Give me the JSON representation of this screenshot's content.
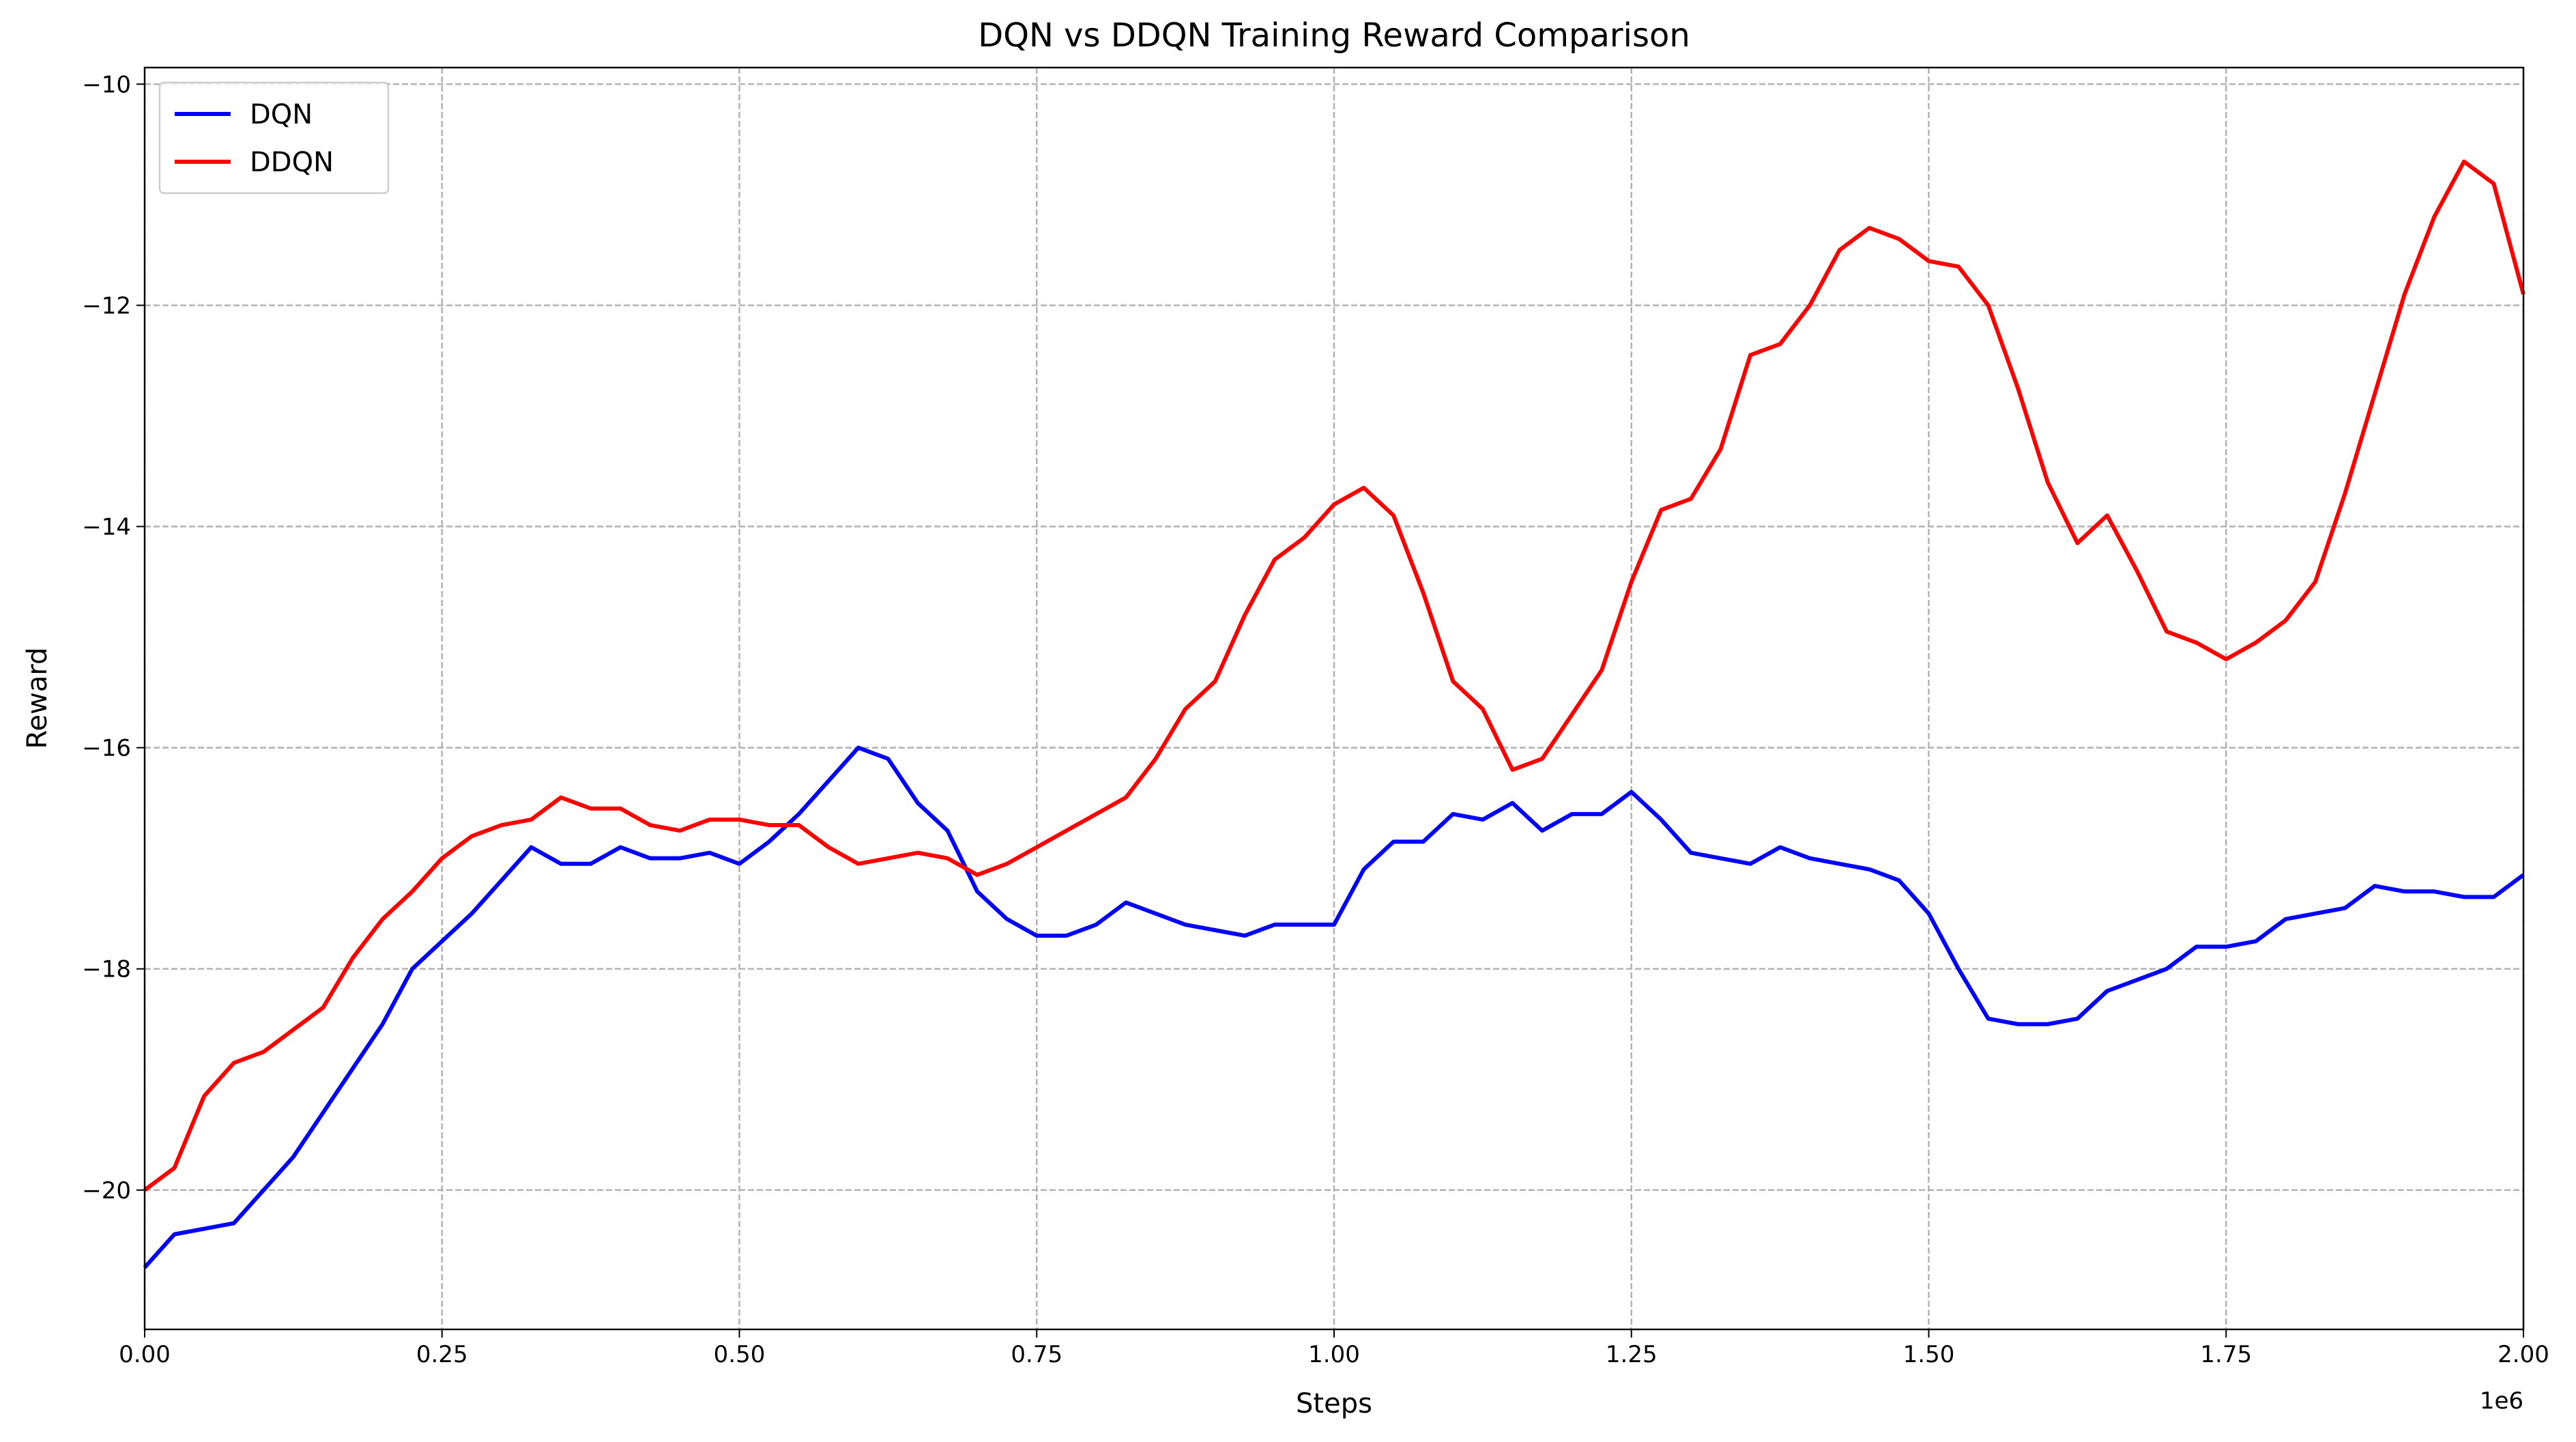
{
  "chart_data": {
    "type": "line",
    "title": "DQN vs DDQN Training Reward Comparison",
    "x_label": "Steps",
    "y_label": "Reward",
    "x_offset_label": "1e6",
    "x": [
      0,
      25000,
      50000,
      75000,
      100000,
      125000,
      150000,
      175000,
      200000,
      225000,
      250000,
      275000,
      300000,
      325000,
      350000,
      375000,
      400000,
      425000,
      450000,
      475000,
      500000,
      525000,
      550000,
      575000,
      600000,
      625000,
      650000,
      675000,
      700000,
      725000,
      750000,
      775000,
      800000,
      825000,
      850000,
      875000,
      900000,
      925000,
      950000,
      975000,
      1000000,
      1025000,
      1050000,
      1075000,
      1100000,
      1125000,
      1150000,
      1175000,
      1200000,
      1225000,
      1250000,
      1275000,
      1300000,
      1325000,
      1350000,
      1375000,
      1400000,
      1425000,
      1450000,
      1475000,
      1500000,
      1525000,
      1550000,
      1575000,
      1600000,
      1625000,
      1650000,
      1675000,
      1700000,
      1725000,
      1750000,
      1775000,
      1800000,
      1825000,
      1850000,
      1875000,
      1900000,
      1925000,
      1950000,
      1975000,
      2000000
    ],
    "series": [
      {
        "name": "DQN",
        "color": "#0000ff",
        "values": [
          -20.7,
          -20.4,
          -20.35,
          -20.3,
          -20.0,
          -19.7,
          -19.3,
          -18.9,
          -18.5,
          -18.0,
          -17.75,
          -17.5,
          -17.2,
          -16.9,
          -17.05,
          -17.05,
          -16.9,
          -17.0,
          -17.0,
          -16.95,
          -17.05,
          -16.85,
          -16.6,
          -16.3,
          -16.0,
          -16.1,
          -16.5,
          -16.75,
          -17.3,
          -17.55,
          -17.7,
          -17.7,
          -17.6,
          -17.4,
          -17.5,
          -17.6,
          -17.65,
          -17.7,
          -17.6,
          -17.6,
          -17.6,
          -17.1,
          -16.85,
          -16.85,
          -16.6,
          -16.65,
          -16.5,
          -16.75,
          -16.6,
          -16.6,
          -16.4,
          -16.65,
          -16.95,
          -17.0,
          -17.05,
          -16.9,
          -17.0,
          -17.05,
          -17.1,
          -17.2,
          -17.5,
          -18.0,
          -18.45,
          -18.5,
          -18.5,
          -18.45,
          -18.2,
          -18.1,
          -18.0,
          -17.8,
          -17.8,
          -17.75,
          -17.55,
          -17.5,
          -17.45,
          -17.25,
          -17.3,
          -17.3,
          -17.35,
          -17.35,
          -17.15
        ]
      },
      {
        "name": "DDQN",
        "color": "#ff0000",
        "values": [
          -20.0,
          -19.8,
          -19.15,
          -18.85,
          -18.75,
          -18.55,
          -18.35,
          -17.9,
          -17.55,
          -17.3,
          -17.0,
          -16.8,
          -16.7,
          -16.65,
          -16.45,
          -16.55,
          -16.55,
          -16.7,
          -16.75,
          -16.65,
          -16.65,
          -16.7,
          -16.7,
          -16.9,
          -17.05,
          -17.0,
          -16.95,
          -17.0,
          -17.15,
          -17.05,
          -16.9,
          -16.75,
          -16.6,
          -16.45,
          -16.1,
          -15.65,
          -15.4,
          -14.8,
          -14.3,
          -14.1,
          -13.8,
          -13.65,
          -13.9,
          -14.6,
          -15.4,
          -15.65,
          -16.2,
          -16.1,
          -15.7,
          -15.3,
          -14.5,
          -13.85,
          -13.75,
          -13.3,
          -12.45,
          -12.35,
          -12.0,
          -11.5,
          -11.3,
          -11.4,
          -11.6,
          -11.65,
          -12.0,
          -12.75,
          -13.6,
          -14.15,
          -13.9,
          -14.4,
          -14.95,
          -15.05,
          -15.2,
          -15.05,
          -14.85,
          -14.5,
          -13.7,
          -12.8,
          -11.9,
          -11.2,
          -10.7,
          -10.9,
          -11.9
        ]
      }
    ],
    "xlim": [
      0,
      2000000
    ],
    "xticks": [
      {
        "value": 0,
        "label": "0.00"
      },
      {
        "value": 250000,
        "label": "0.25"
      },
      {
        "value": 500000,
        "label": "0.50"
      },
      {
        "value": 750000,
        "label": "0.75"
      },
      {
        "value": 1000000,
        "label": "1.00"
      },
      {
        "value": 1250000,
        "label": "1.25"
      },
      {
        "value": 1500000,
        "label": "1.50"
      },
      {
        "value": 1750000,
        "label": "1.75"
      },
      {
        "value": 2000000,
        "label": "2.00"
      }
    ],
    "ylim": [
      -21.26,
      -9.85
    ],
    "yticks": [
      {
        "value": -20,
        "label": "−20"
      },
      {
        "value": -18,
        "label": "−18"
      },
      {
        "value": -16,
        "label": "−16"
      },
      {
        "value": -14,
        "label": "−14"
      },
      {
        "value": -12,
        "label": "−12"
      },
      {
        "value": -10,
        "label": "−10"
      }
    ],
    "grid": true,
    "legend": "upper left"
  }
}
